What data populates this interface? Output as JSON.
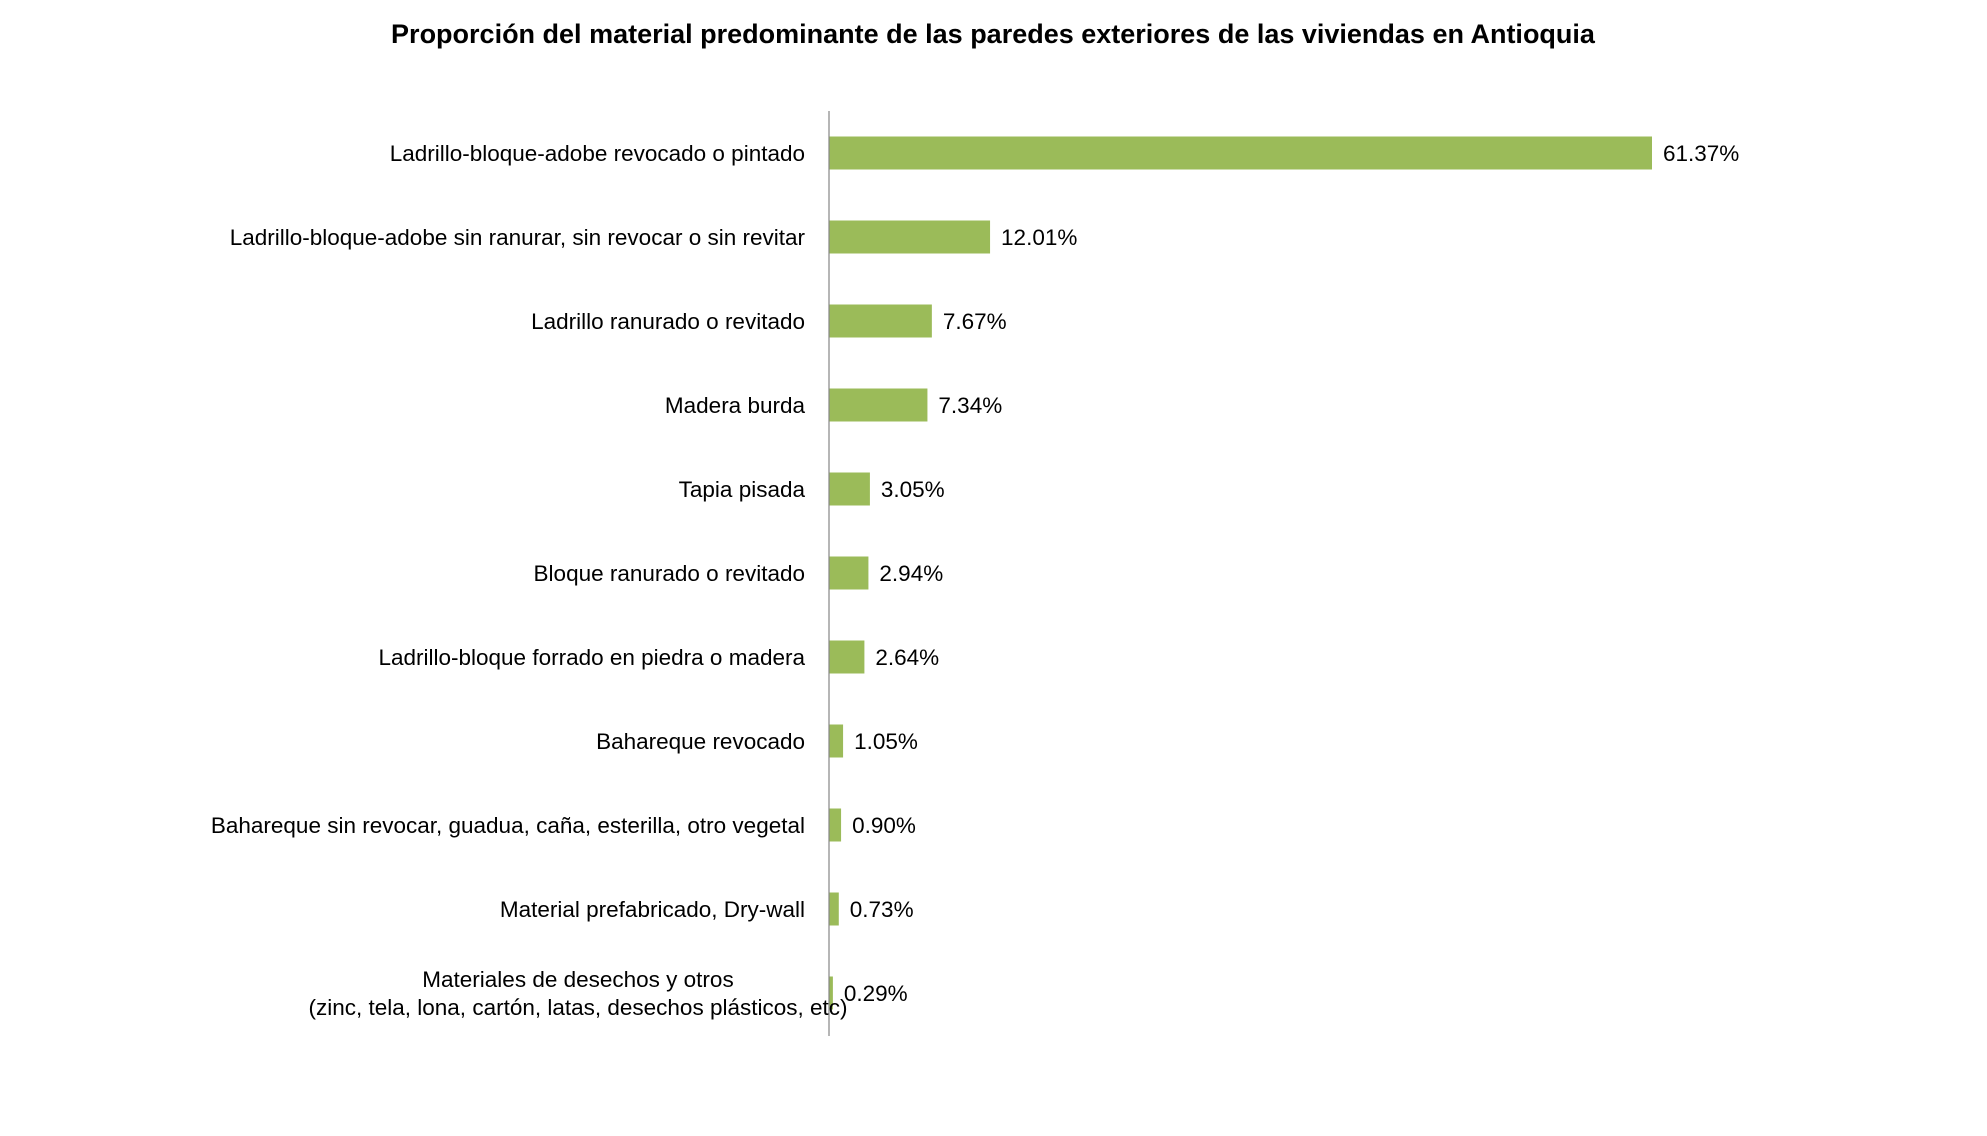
{
  "chart_data": {
    "type": "bar",
    "orientation": "horizontal",
    "title": "Proporción del material predominante de las paredes exteriores de las viviendas en Antioquia",
    "xlabel": "",
    "ylabel": "",
    "categories": [
      [
        "Ladrillo-bloque-adobe revocado o pintado"
      ],
      [
        "Ladrillo-bloque-adobe sin ranurar, sin revocar o sin revitar"
      ],
      [
        "Ladrillo ranurado o revitado"
      ],
      [
        "Madera burda"
      ],
      [
        "Tapia pisada"
      ],
      [
        "Bloque ranurado o revitado"
      ],
      [
        "Ladrillo-bloque forrado en piedra o madera"
      ],
      [
        "Bahareque revocado"
      ],
      [
        "Bahareque sin revocar, guadua, caña, esterilla, otro vegetal"
      ],
      [
        "Material prefabricado, Dry-wall"
      ],
      [
        "Materiales de desechos y otros",
        "(zinc, tela, lona, cartón, latas, desechos plásticos, etc)"
      ]
    ],
    "values": [
      61.37,
      12.01,
      7.67,
      7.34,
      3.05,
      2.94,
      2.64,
      1.05,
      0.9,
      0.73,
      0.29
    ],
    "value_labels": [
      "61.37%",
      "12.01%",
      "7.67%",
      "7.34%",
      "3.05%",
      "2.94%",
      "2.64%",
      "1.05%",
      "0.90%",
      "0.73%",
      "0.29%"
    ],
    "xlim": [
      0,
      100
    ],
    "grid": false,
    "legend": "none",
    "colors": {
      "bar": "#9BBB59",
      "axis": "#868686",
      "text": "#000000"
    }
  }
}
